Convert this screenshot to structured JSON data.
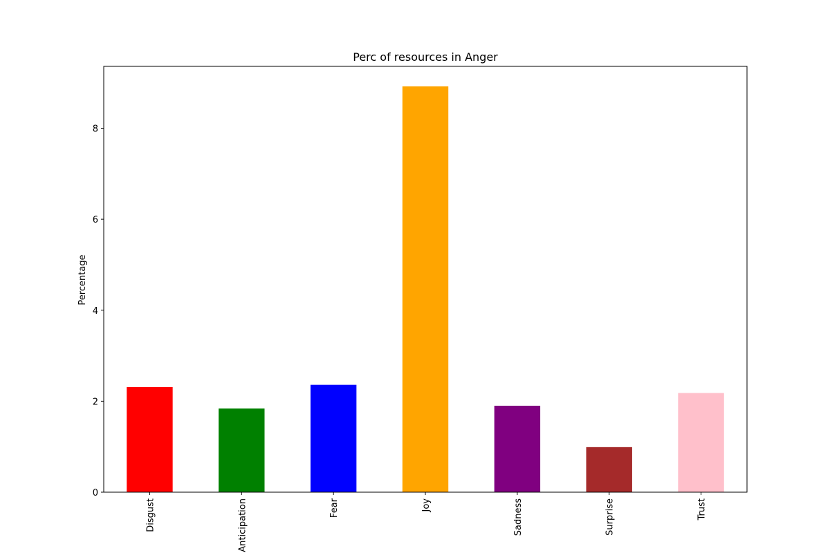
{
  "chart_data": {
    "type": "bar",
    "title": "Perc of resources in Anger",
    "xlabel": "",
    "ylabel": "Percentage",
    "categories": [
      "Disgust",
      "Anticipation",
      "Fear",
      "Joy",
      "Sadness",
      "Surprise",
      "Trust"
    ],
    "values": [
      2.31,
      1.84,
      2.36,
      8.92,
      1.9,
      0.99,
      2.18
    ],
    "colors": [
      "#ff0000",
      "#008000",
      "#0000ff",
      "#ffa500",
      "#800080",
      "#a52a2a",
      "#ffc0cb"
    ],
    "yticks": [
      "0",
      "2",
      "4",
      "6",
      "8"
    ],
    "ylim": [
      0,
      9.36
    ],
    "grid": false,
    "legend": "none"
  }
}
